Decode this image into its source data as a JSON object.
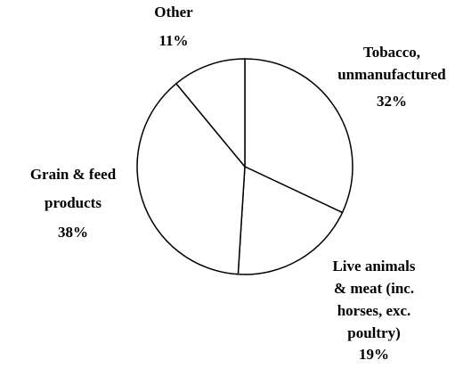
{
  "chart_data": {
    "type": "pie",
    "categories": [
      [
        "Tobacco,",
        "unmanufactured"
      ],
      [
        "Live animals",
        "& meat (inc.",
        "horses, exc.",
        "poultry)"
      ],
      [
        "Grain & feed",
        "products"
      ],
      [
        "Other"
      ]
    ],
    "values": [
      32,
      19,
      38,
      11
    ],
    "value_labels": [
      "32%",
      "19%",
      "38%",
      "11%"
    ],
    "color": "#ffffff"
  }
}
